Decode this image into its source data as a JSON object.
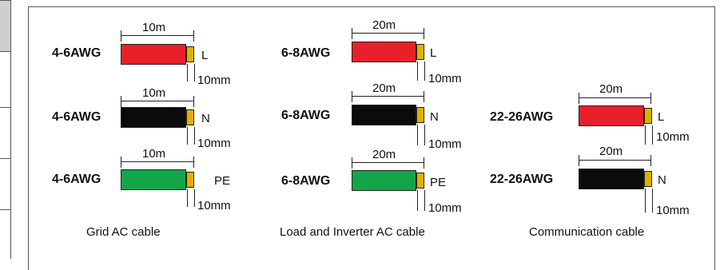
{
  "columns": [
    {
      "caption": "Grid AC cable",
      "cables": [
        {
          "awg": "4-6AWG",
          "length": "10m",
          "color": "#e8202a",
          "conductor": "L",
          "strip": "10mm"
        },
        {
          "awg": "4-6AWG",
          "length": "10m",
          "color": "#0b0b0b",
          "conductor": "N",
          "strip": "10mm"
        },
        {
          "awg": "4-6AWG",
          "length": "10m",
          "color": "#14a54a",
          "conductor": "PE",
          "strip": "10mm"
        }
      ]
    },
    {
      "caption": "Load and Inverter AC cable",
      "cables": [
        {
          "awg": "6-8AWG",
          "length": "20m",
          "color": "#e8202a",
          "conductor": "L",
          "strip": "10mm"
        },
        {
          "awg": "6-8AWG",
          "length": "20m",
          "color": "#0b0b0b",
          "conductor": "N",
          "strip": "10mm"
        },
        {
          "awg": "6-8AWG",
          "length": "20m",
          "color": "#14a54a",
          "conductor": "PE",
          "strip": "10mm"
        }
      ]
    },
    {
      "caption": "Communication cable",
      "cables": [
        {
          "awg": "22-26AWG",
          "length": "20m",
          "color": "#e8202a",
          "conductor": "L",
          "strip": "10mm"
        },
        {
          "awg": "22-26AWG",
          "length": "20m",
          "color": "#0b0b0b",
          "conductor": "N",
          "strip": "10mm"
        }
      ]
    }
  ],
  "tip_color": "#e0b000"
}
